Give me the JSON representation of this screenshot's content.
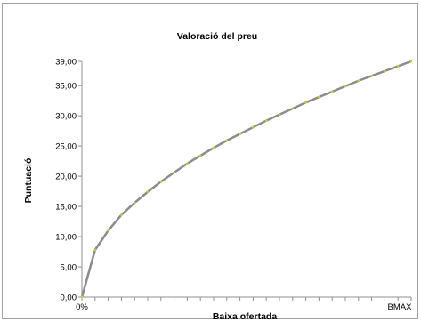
{
  "chart_data": {
    "type": "line",
    "title": "Valoració del preu",
    "xlabel": "Baixa ofertada",
    "ylabel": "Puntuació",
    "x_tick_labels": [
      "0%",
      "BMAX"
    ],
    "ylim": [
      0,
      39
    ],
    "y_ticks": [
      0,
      5,
      10,
      15,
      20,
      25,
      30,
      35,
      39
    ],
    "y_tick_labels": [
      "0,00",
      "5,00",
      "10,00",
      "15,00",
      "20,00",
      "25,00",
      "30,00",
      "35,00",
      "39,00"
    ],
    "grid": false,
    "legend": "none",
    "series": [
      {
        "color": "#8c8c8c",
        "marker_color": "#c9c93a",
        "x": [
          0,
          0.04,
          0.08,
          0.12,
          0.16,
          0.2,
          0.24,
          0.28,
          0.32,
          0.36,
          0.4,
          0.44,
          0.48,
          0.52,
          0.56,
          0.6,
          0.64,
          0.68,
          0.72,
          0.76,
          0.8,
          0.84,
          0.88,
          0.92,
          0.96,
          1.0
        ],
        "values": [
          0,
          7.8,
          11.0,
          13.6,
          15.6,
          17.4,
          19.1,
          20.6,
          22.1,
          23.4,
          24.7,
          25.9,
          27.0,
          28.1,
          29.2,
          30.2,
          31.2,
          32.2,
          33.1,
          34.0,
          34.9,
          35.8,
          36.6,
          37.4,
          38.2,
          39.0
        ]
      }
    ]
  }
}
